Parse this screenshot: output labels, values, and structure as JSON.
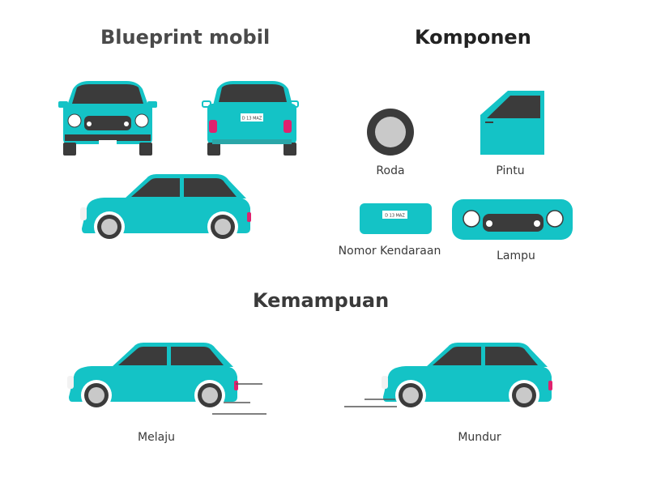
{
  "sections": {
    "blueprint_title": "Blueprint mobil",
    "components_title": "Komponen",
    "abilities_title": "Kemampuan"
  },
  "components": {
    "wheel": "Roda",
    "door": "Pintu",
    "plate": "Nomor Kendaraan",
    "lights": "Lampu"
  },
  "abilities": {
    "forward": "Melaju",
    "reverse": "Mundur"
  },
  "plate_text": "D 13 MAZ",
  "colors": {
    "body": "#14c3c6",
    "window": "#3b3b3b",
    "tire": "#3b3b3b",
    "hub": "#c9c9c9",
    "brake_light": "#e0226e",
    "text": "#3a3a3a"
  }
}
